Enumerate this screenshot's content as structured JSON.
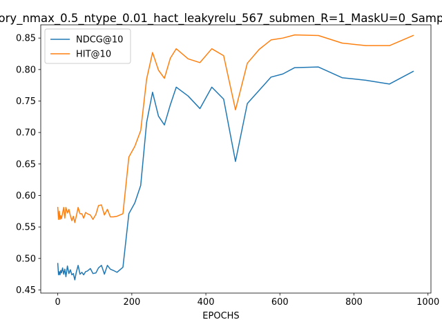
{
  "chart_data": {
    "type": "line",
    "title": "ory_nmax_0.5_ntype_0.01_hact_leakyrelu_567_submen_R=1_MaskU=0_Samp",
    "xlabel": "EPOCHS",
    "ylabel": "",
    "xlim": [
      -46,
      1008
    ],
    "ylim": [
      0.445,
      0.871
    ],
    "xticks": [
      0,
      200,
      400,
      600,
      800,
      1000
    ],
    "xtick_labels": [
      "0",
      "200",
      "400",
      "600",
      "800",
      "1000"
    ],
    "yticks": [
      0.45,
      0.5,
      0.55,
      0.6,
      0.65,
      0.7,
      0.75,
      0.8,
      0.85
    ],
    "ytick_labels": [
      "0.45",
      "0.50",
      "0.55",
      "0.60",
      "0.65",
      "0.70",
      "0.75",
      "0.80",
      "0.85"
    ],
    "grid": false,
    "legend_position": "top-left",
    "series": [
      {
        "name": "NDCG@10",
        "color": "#1f77b4",
        "points": [
          [
            0,
            0.492
          ],
          [
            2,
            0.474
          ],
          [
            4,
            0.479
          ],
          [
            6,
            0.474
          ],
          [
            8,
            0.481
          ],
          [
            10,
            0.477
          ],
          [
            13,
            0.485
          ],
          [
            16,
            0.475
          ],
          [
            19,
            0.483
          ],
          [
            22,
            0.471
          ],
          [
            26,
            0.488
          ],
          [
            30,
            0.476
          ],
          [
            34,
            0.482
          ],
          [
            38,
            0.474
          ],
          [
            42,
            0.476
          ],
          [
            46,
            0.466
          ],
          [
            50,
            0.478
          ],
          [
            55,
            0.489
          ],
          [
            60,
            0.475
          ],
          [
            65,
            0.478
          ],
          [
            70,
            0.474
          ],
          [
            75,
            0.479
          ],
          [
            80,
            0.48
          ],
          [
            88,
            0.484
          ],
          [
            95,
            0.476
          ],
          [
            103,
            0.477
          ],
          [
            110,
            0.485
          ],
          [
            118,
            0.489
          ],
          [
            126,
            0.475
          ],
          [
            134,
            0.489
          ],
          [
            142,
            0.483
          ],
          [
            150,
            0.481
          ],
          [
            160,
            0.478
          ],
          [
            176,
            0.486
          ],
          [
            192,
            0.571
          ],
          [
            208,
            0.588
          ],
          [
            224,
            0.616
          ],
          [
            240,
            0.716
          ],
          [
            256,
            0.764
          ],
          [
            272,
            0.726
          ],
          [
            288,
            0.712
          ],
          [
            304,
            0.744
          ],
          [
            320,
            0.772
          ],
          [
            352,
            0.758
          ],
          [
            384,
            0.738
          ],
          [
            416,
            0.772
          ],
          [
            448,
            0.753
          ],
          [
            480,
            0.654
          ],
          [
            512,
            0.746
          ],
          [
            544,
            0.767
          ],
          [
            576,
            0.788
          ],
          [
            608,
            0.793
          ],
          [
            640,
            0.803
          ],
          [
            704,
            0.804
          ],
          [
            768,
            0.787
          ],
          [
            832,
            0.783
          ],
          [
            896,
            0.777
          ],
          [
            960,
            0.797
          ]
        ]
      },
      {
        "name": "HIT@10",
        "color": "#ff7f0e",
        "points": [
          [
            0,
            0.581
          ],
          [
            2,
            0.562
          ],
          [
            4,
            0.575
          ],
          [
            6,
            0.562
          ],
          [
            8,
            0.568
          ],
          [
            10,
            0.563
          ],
          [
            13,
            0.572
          ],
          [
            16,
            0.581
          ],
          [
            19,
            0.564
          ],
          [
            22,
            0.581
          ],
          [
            26,
            0.572
          ],
          [
            30,
            0.578
          ],
          [
            34,
            0.568
          ],
          [
            38,
            0.56
          ],
          [
            42,
            0.567
          ],
          [
            46,
            0.557
          ],
          [
            50,
            0.567
          ],
          [
            55,
            0.581
          ],
          [
            60,
            0.571
          ],
          [
            65,
            0.571
          ],
          [
            70,
            0.564
          ],
          [
            75,
            0.573
          ],
          [
            80,
            0.571
          ],
          [
            88,
            0.569
          ],
          [
            95,
            0.562
          ],
          [
            103,
            0.57
          ],
          [
            110,
            0.584
          ],
          [
            118,
            0.585
          ],
          [
            126,
            0.569
          ],
          [
            134,
            0.578
          ],
          [
            142,
            0.566
          ],
          [
            150,
            0.566
          ],
          [
            160,
            0.567
          ],
          [
            176,
            0.571
          ],
          [
            192,
            0.661
          ],
          [
            208,
            0.678
          ],
          [
            224,
            0.703
          ],
          [
            240,
            0.785
          ],
          [
            256,
            0.827
          ],
          [
            272,
            0.799
          ],
          [
            288,
            0.786
          ],
          [
            304,
            0.818
          ],
          [
            320,
            0.833
          ],
          [
            352,
            0.817
          ],
          [
            384,
            0.811
          ],
          [
            416,
            0.833
          ],
          [
            448,
            0.822
          ],
          [
            480,
            0.736
          ],
          [
            512,
            0.81
          ],
          [
            544,
            0.832
          ],
          [
            576,
            0.847
          ],
          [
            608,
            0.85
          ],
          [
            640,
            0.855
          ],
          [
            704,
            0.854
          ],
          [
            768,
            0.842
          ],
          [
            832,
            0.838
          ],
          [
            896,
            0.838
          ],
          [
            960,
            0.854
          ]
        ]
      }
    ]
  }
}
